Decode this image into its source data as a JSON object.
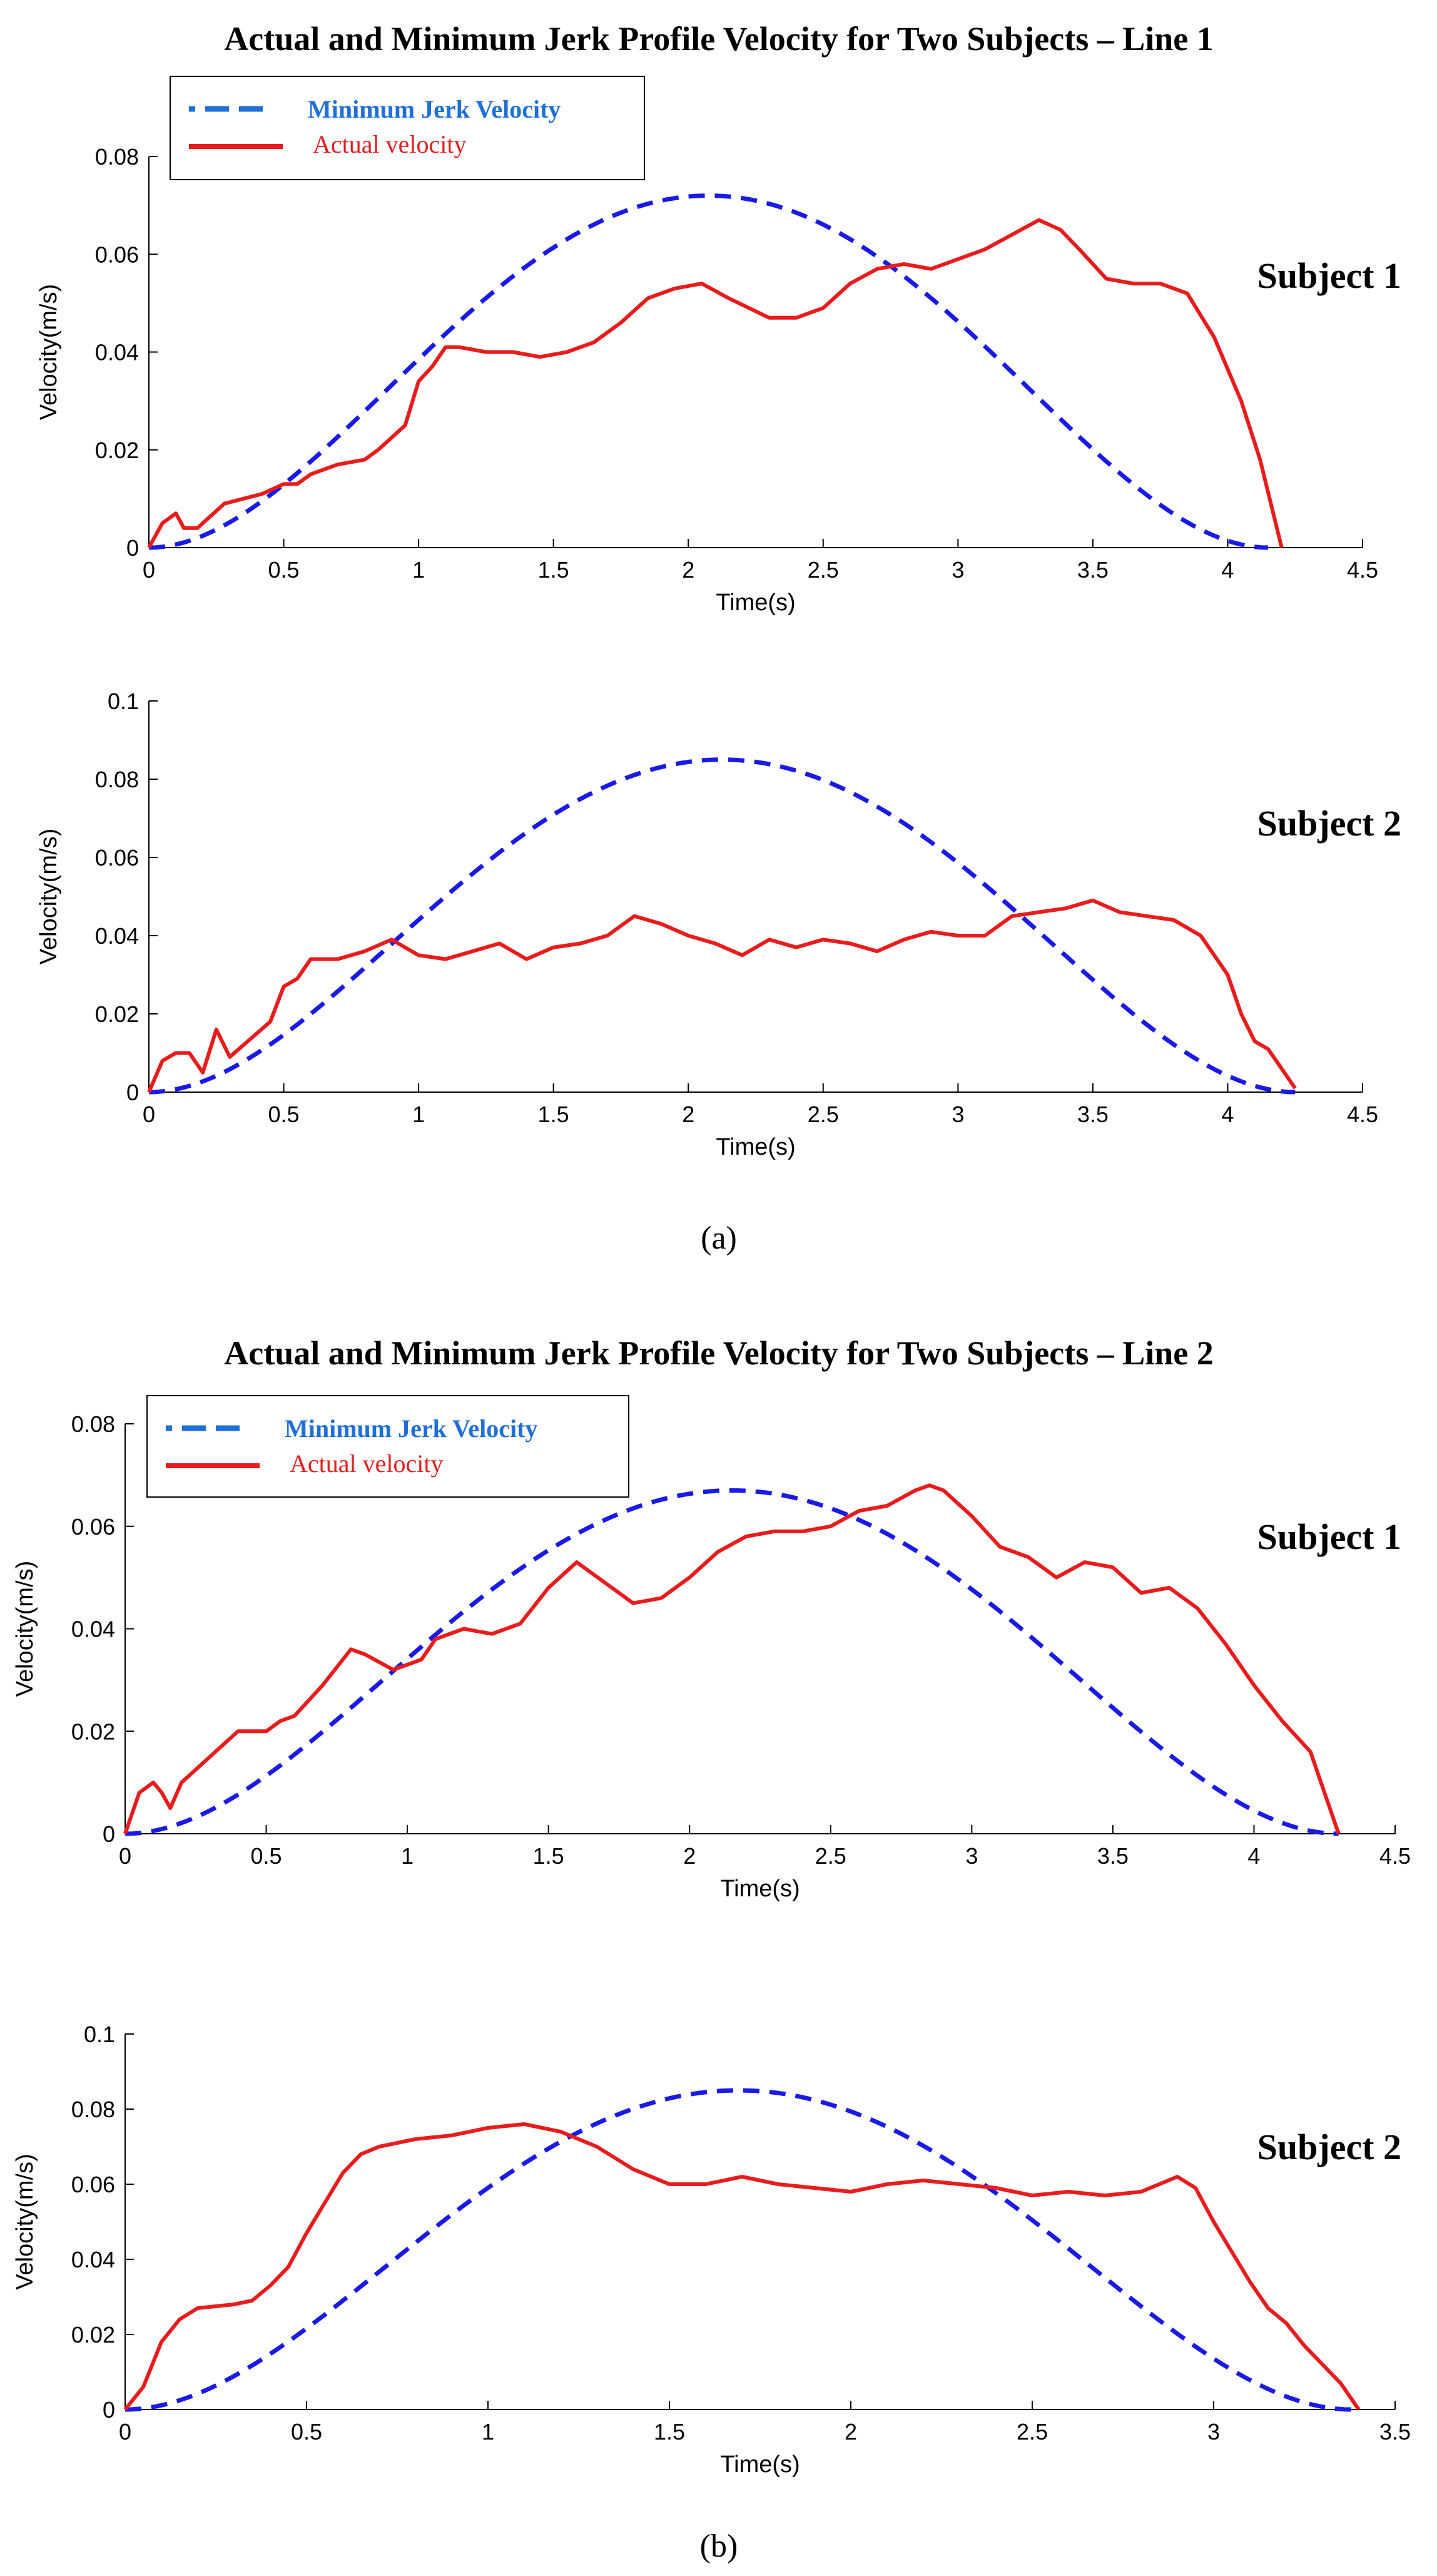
{
  "figure": {
    "titles": [
      "Actual and Minimum Jerk Profile Velocity for Two Subjects – Line 1",
      "Actual and Minimum Jerk Profile Velocity for Two Subjects – Line 2"
    ],
    "captions": [
      "(a)",
      "(b)"
    ],
    "legend": {
      "min_label": "Minimum Jerk Velocity",
      "actual_label": "Actual velocity"
    },
    "colors": {
      "min": "#1a1ae6",
      "actual": "#e81c1c",
      "legend_min_text": "#1f6fd6",
      "legend_actual_text": "#e02020"
    }
  },
  "chart_data": [
    {
      "type": "line",
      "panel": "(a)",
      "title": "Actual and Minimum Jerk Profile Velocity for Two Subjects – Line 1",
      "annotation": "Subject 1",
      "xlabel": "Time(s)",
      "ylabel": "Velocity(m/s)",
      "xlim": [
        0,
        4.5
      ],
      "ylim": [
        0,
        0.08
      ],
      "xticks": [
        0,
        0.5,
        1,
        1.5,
        2,
        2.5,
        3,
        3.5,
        4,
        4.5
      ],
      "xtick_labels": [
        "0",
        "0.5",
        "1",
        "1.5",
        "2",
        "2.5",
        "3",
        "3.5",
        "4",
        "4.5"
      ],
      "yticks": [
        0,
        0.02,
        0.04,
        0.06,
        0.08
      ],
      "ytick_labels": [
        "0",
        "0.02",
        "0.04",
        "0.06",
        "0.08"
      ],
      "legend": true,
      "series": [
        {
          "name": "Minimum Jerk Velocity",
          "style": "dashed",
          "minjerk": {
            "T": 4.15,
            "peak": 0.072
          }
        },
        {
          "name": "Actual velocity",
          "style": "solid",
          "x": [
            0,
            0.05,
            0.1,
            0.13,
            0.18,
            0.22,
            0.28,
            0.35,
            0.42,
            0.5,
            0.55,
            0.6,
            0.7,
            0.8,
            0.85,
            0.95,
            1.0,
            1.05,
            1.1,
            1.15,
            1.25,
            1.35,
            1.45,
            1.55,
            1.65,
            1.75,
            1.85,
            1.95,
            2.05,
            2.15,
            2.3,
            2.4,
            2.5,
            2.6,
            2.7,
            2.8,
            2.9,
            3.0,
            3.1,
            3.2,
            3.3,
            3.38,
            3.45,
            3.55,
            3.65,
            3.75,
            3.85,
            3.95,
            4.05,
            4.12,
            4.2
          ],
          "y": [
            0,
            0.005,
            0.007,
            0.004,
            0.004,
            0.006,
            0.009,
            0.01,
            0.011,
            0.013,
            0.013,
            0.015,
            0.017,
            0.018,
            0.02,
            0.025,
            0.034,
            0.037,
            0.041,
            0.041,
            0.04,
            0.04,
            0.039,
            0.04,
            0.042,
            0.046,
            0.051,
            0.053,
            0.054,
            0.051,
            0.047,
            0.047,
            0.049,
            0.054,
            0.057,
            0.058,
            0.057,
            0.059,
            0.061,
            0.064,
            0.067,
            0.065,
            0.061,
            0.055,
            0.054,
            0.054,
            0.052,
            0.043,
            0.03,
            0.018,
            0
          ]
        }
      ]
    },
    {
      "type": "line",
      "panel": "(a)",
      "annotation": "Subject 2",
      "xlabel": "Time(s)",
      "ylabel": "Velocity(m/s)",
      "xlim": [
        0,
        4.5
      ],
      "ylim": [
        0,
        0.1
      ],
      "xticks": [
        0,
        0.5,
        1,
        1.5,
        2,
        2.5,
        3,
        3.5,
        4,
        4.5
      ],
      "xtick_labels": [
        "0",
        "0.5",
        "1",
        "1.5",
        "2",
        "2.5",
        "3",
        "3.5",
        "4",
        "4.5"
      ],
      "yticks": [
        0,
        0.02,
        0.04,
        0.06,
        0.08,
        0.1
      ],
      "ytick_labels": [
        "0",
        "0.02",
        "0.04",
        "0.06",
        "0.08",
        "0.1"
      ],
      "legend": false,
      "series": [
        {
          "name": "Minimum Jerk Velocity",
          "style": "dashed",
          "minjerk": {
            "T": 4.25,
            "peak": 0.085
          }
        },
        {
          "name": "Actual velocity",
          "style": "solid",
          "x": [
            0,
            0.05,
            0.1,
            0.15,
            0.2,
            0.25,
            0.3,
            0.35,
            0.4,
            0.45,
            0.5,
            0.55,
            0.6,
            0.7,
            0.8,
            0.9,
            0.95,
            1.0,
            1.1,
            1.2,
            1.3,
            1.4,
            1.5,
            1.6,
            1.7,
            1.8,
            1.9,
            2.0,
            2.1,
            2.2,
            2.3,
            2.4,
            2.5,
            2.6,
            2.7,
            2.8,
            2.9,
            3.0,
            3.1,
            3.2,
            3.3,
            3.4,
            3.5,
            3.6,
            3.7,
            3.8,
            3.9,
            4.0,
            4.05,
            4.1,
            4.15,
            4.2,
            4.25
          ],
          "y": [
            0,
            0.008,
            0.01,
            0.01,
            0.005,
            0.016,
            0.009,
            0.012,
            0.015,
            0.018,
            0.027,
            0.029,
            0.034,
            0.034,
            0.036,
            0.039,
            0.037,
            0.035,
            0.034,
            0.036,
            0.038,
            0.034,
            0.037,
            0.038,
            0.04,
            0.045,
            0.043,
            0.04,
            0.038,
            0.035,
            0.039,
            0.037,
            0.039,
            0.038,
            0.036,
            0.039,
            0.041,
            0.04,
            0.04,
            0.045,
            0.046,
            0.047,
            0.049,
            0.046,
            0.045,
            0.044,
            0.04,
            0.03,
            0.02,
            0.013,
            0.011,
            0.006,
            0.001
          ]
        }
      ]
    },
    {
      "type": "line",
      "panel": "(b)",
      "title": "Actual and Minimum Jerk Profile Velocity for Two Subjects – Line 2",
      "annotation": "Subject 1",
      "xlabel": "Time(s)",
      "ylabel": "Velocity(m/s)",
      "xlim": [
        0,
        4.5
      ],
      "ylim": [
        0,
        0.08
      ],
      "xticks": [
        0,
        0.5,
        1,
        1.5,
        2,
        2.5,
        3,
        3.5,
        4,
        4.5
      ],
      "xtick_labels": [
        "0",
        "0.5",
        "1",
        "1.5",
        "2",
        "2.5",
        "3",
        "3.5",
        "4",
        "4.5"
      ],
      "yticks": [
        0,
        0.02,
        0.04,
        0.06,
        0.08
      ],
      "ytick_labels": [
        "0",
        "0.02",
        "0.04",
        "0.06",
        "0.08"
      ],
      "legend": true,
      "series": [
        {
          "name": "Minimum Jerk Velocity",
          "style": "dashed",
          "minjerk": {
            "T": 4.3,
            "peak": 0.067
          }
        },
        {
          "name": "Actual velocity",
          "style": "solid",
          "x": [
            0,
            0.05,
            0.1,
            0.13,
            0.16,
            0.2,
            0.3,
            0.4,
            0.5,
            0.55,
            0.6,
            0.7,
            0.8,
            0.85,
            0.95,
            1.05,
            1.1,
            1.2,
            1.3,
            1.4,
            1.5,
            1.6,
            1.7,
            1.8,
            1.9,
            2.0,
            2.1,
            2.2,
            2.3,
            2.4,
            2.5,
            2.6,
            2.7,
            2.8,
            2.85,
            2.9,
            3.0,
            3.1,
            3.2,
            3.3,
            3.4,
            3.5,
            3.6,
            3.7,
            3.8,
            3.9,
            4.0,
            4.1,
            4.2,
            4.25,
            4.3
          ],
          "y": [
            0,
            0.008,
            0.01,
            0.008,
            0.005,
            0.01,
            0.015,
            0.02,
            0.02,
            0.022,
            0.023,
            0.029,
            0.036,
            0.035,
            0.032,
            0.034,
            0.038,
            0.04,
            0.039,
            0.041,
            0.048,
            0.053,
            0.049,
            0.045,
            0.046,
            0.05,
            0.055,
            0.058,
            0.059,
            0.059,
            0.06,
            0.063,
            0.064,
            0.067,
            0.068,
            0.067,
            0.062,
            0.056,
            0.054,
            0.05,
            0.053,
            0.052,
            0.047,
            0.048,
            0.044,
            0.037,
            0.029,
            0.022,
            0.016,
            0.008,
            0
          ]
        }
      ]
    },
    {
      "type": "line",
      "panel": "(b)",
      "annotation": "Subject 2",
      "xlabel": "Time(s)",
      "ylabel": "Velocity(m/s)",
      "xlim": [
        0,
        3.5
      ],
      "ylim": [
        0,
        0.1
      ],
      "xticks": [
        0,
        0.5,
        1,
        1.5,
        2,
        2.5,
        3,
        3.5
      ],
      "xtick_labels": [
        "0",
        "0.5",
        "1",
        "1.5",
        "2",
        "2.5",
        "3",
        "3.5"
      ],
      "yticks": [
        0,
        0.02,
        0.04,
        0.06,
        0.08,
        0.1
      ],
      "ytick_labels": [
        "0",
        "0.02",
        "0.04",
        "0.06",
        "0.08",
        "0.1"
      ],
      "legend": false,
      "series": [
        {
          "name": "Minimum Jerk Velocity",
          "style": "dashed",
          "minjerk": {
            "T": 3.38,
            "peak": 0.085
          }
        },
        {
          "name": "Actual velocity",
          "style": "solid",
          "x": [
            0,
            0.05,
            0.1,
            0.15,
            0.2,
            0.3,
            0.35,
            0.4,
            0.45,
            0.5,
            0.55,
            0.6,
            0.65,
            0.7,
            0.8,
            0.9,
            1.0,
            1.1,
            1.2,
            1.3,
            1.4,
            1.5,
            1.6,
            1.7,
            1.8,
            1.9,
            2.0,
            2.1,
            2.2,
            2.3,
            2.4,
            2.5,
            2.6,
            2.7,
            2.8,
            2.9,
            2.95,
            3.0,
            3.05,
            3.1,
            3.15,
            3.2,
            3.25,
            3.3,
            3.35,
            3.4
          ],
          "y": [
            0,
            0.006,
            0.018,
            0.024,
            0.027,
            0.028,
            0.029,
            0.033,
            0.038,
            0.047,
            0.055,
            0.063,
            0.068,
            0.07,
            0.072,
            0.073,
            0.075,
            0.076,
            0.074,
            0.07,
            0.064,
            0.06,
            0.06,
            0.062,
            0.06,
            0.059,
            0.058,
            0.06,
            0.061,
            0.06,
            0.059,
            0.057,
            0.058,
            0.057,
            0.058,
            0.062,
            0.059,
            0.05,
            0.042,
            0.034,
            0.027,
            0.023,
            0.017,
            0.012,
            0.007,
            0
          ]
        }
      ]
    }
  ]
}
